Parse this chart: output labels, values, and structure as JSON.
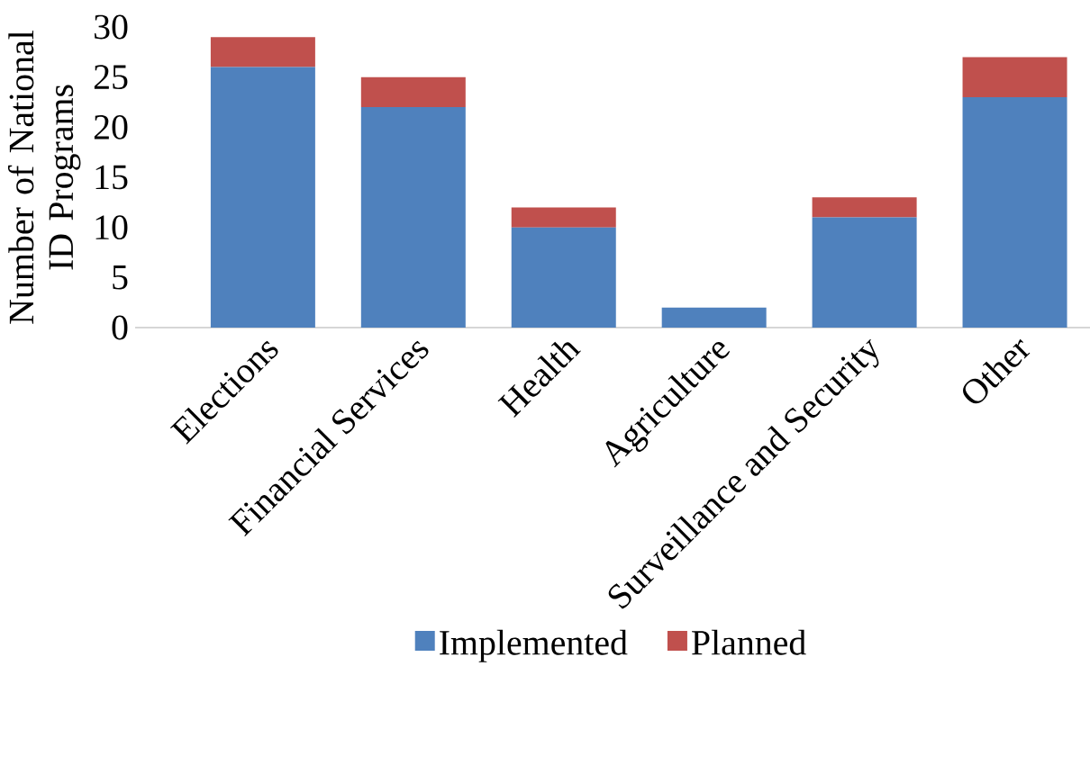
{
  "chart_data": {
    "type": "bar",
    "stacked": true,
    "ylabel": "Number of National ID Programs",
    "categories": [
      "Elections",
      "Financial Services",
      "Health",
      "Agriculture",
      "Surveillance and Security",
      "Other"
    ],
    "series": [
      {
        "name": "Implemented",
        "color": "#4f81bd",
        "values": [
          26,
          22,
          10,
          2,
          11,
          23
        ]
      },
      {
        "name": "Planned",
        "color": "#c0504d",
        "values": [
          3,
          3,
          2,
          0,
          2,
          4
        ]
      }
    ],
    "ylim": [
      0,
      30
    ],
    "yticks": [
      0,
      5,
      10,
      15,
      20,
      25,
      30
    ],
    "grid": false,
    "legend": "bottom"
  }
}
